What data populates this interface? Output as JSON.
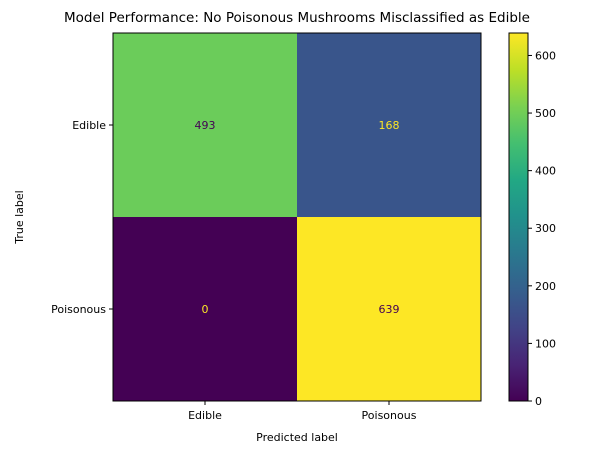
{
  "chart_data": {
    "type": "heatmap",
    "title": "Model Performance: No Poisonous Mushrooms Misclassified as Edible",
    "xlabel": "Predicted label",
    "ylabel": "True label",
    "x_categories": [
      "Edible",
      "Poisonous"
    ],
    "y_categories": [
      "Edible",
      "Poisonous"
    ],
    "values": [
      [
        493,
        168
      ],
      [
        0,
        639
      ]
    ],
    "colormap": "viridis",
    "colorbar": {
      "range": [
        0,
        639
      ],
      "ticks": [
        0,
        100,
        200,
        300,
        400,
        500,
        600
      ]
    },
    "text_colors": {
      "on_dark": "#FDE725",
      "on_light": "#440154"
    }
  }
}
